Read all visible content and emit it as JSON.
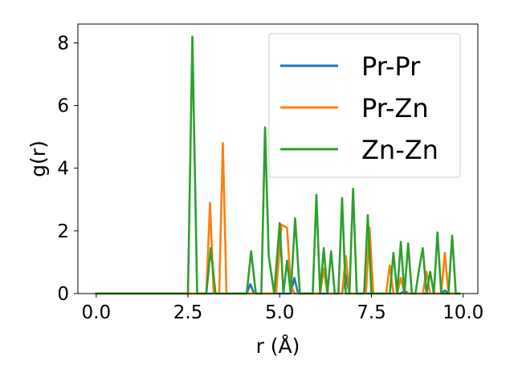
{
  "chart_data": {
    "type": "line",
    "xlabel": "r (Å)",
    "ylabel": "g(r)",
    "xlim": [
      -0.5,
      10.4
    ],
    "ylim": [
      0,
      8.6
    ],
    "xticks": [
      0.0,
      2.5,
      5.0,
      7.5,
      10.0
    ],
    "xtick_labels": [
      "0.0",
      "2.5",
      "5.0",
      "7.5",
      "10.0"
    ],
    "yticks": [
      0,
      2,
      4,
      6,
      8
    ],
    "ytick_labels": [
      "0",
      "2",
      "4",
      "6",
      "8"
    ],
    "grid": false,
    "legend_position": "top-right",
    "series": [
      {
        "name": "Pr-Pr",
        "color": "#1f77b4",
        "x": [
          0.0,
          4.1,
          4.2,
          4.3,
          5.3,
          5.4,
          5.5,
          6.7,
          6.8,
          6.9,
          8.3,
          8.4,
          8.5,
          9.4,
          9.5,
          9.6,
          9.9
        ],
        "y": [
          0,
          0,
          0.3,
          0,
          0,
          0.5,
          0,
          0,
          0.6,
          0,
          0,
          0.1,
          0,
          0,
          0.1,
          0,
          0
        ]
      },
      {
        "name": "Pr-Zn",
        "color": "#ff7f0e",
        "x": [
          0.0,
          3.0,
          3.1,
          3.2,
          3.35,
          3.45,
          3.55,
          4.9,
          5.05,
          5.2,
          5.3,
          5.4,
          6.1,
          6.2,
          6.3,
          6.7,
          6.8,
          6.9,
          7.35,
          7.45,
          7.55,
          7.9,
          8.0,
          8.1,
          8.2,
          8.3,
          8.4,
          8.9,
          9.0,
          9.1,
          9.4,
          9.5,
          9.6,
          9.9
        ],
        "y": [
          0,
          0,
          2.9,
          0,
          0,
          4.8,
          0,
          0,
          2.2,
          2.1,
          0.3,
          0,
          0,
          0.8,
          0,
          0,
          1.2,
          0,
          0,
          2.1,
          0,
          0,
          0.9,
          0,
          0,
          0.5,
          0,
          0,
          0.7,
          0,
          0,
          1.3,
          0,
          0
        ]
      },
      {
        "name": "Zn-Zn",
        "color": "#2ca02c",
        "x": [
          0.0,
          2.5,
          2.62,
          2.75,
          3.0,
          3.12,
          3.25,
          4.1,
          4.22,
          4.35,
          4.5,
          4.6,
          4.7,
          4.85,
          5.0,
          5.1,
          5.2,
          5.3,
          5.42,
          5.55,
          5.9,
          6.0,
          6.1,
          6.2,
          6.3,
          6.4,
          6.5,
          6.6,
          6.7,
          6.8,
          6.9,
          7.0,
          7.1,
          7.2,
          7.3,
          7.4,
          7.5,
          7.6,
          7.7,
          7.8,
          7.9,
          8.0,
          8.1,
          8.2,
          8.3,
          8.4,
          8.5,
          8.6,
          8.7,
          8.8,
          8.9,
          9.0,
          9.1,
          9.2,
          9.3,
          9.4,
          9.5,
          9.6,
          9.7,
          9.8,
          9.9
        ],
        "y": [
          0,
          0,
          8.2,
          0,
          0,
          1.45,
          0,
          0,
          1.35,
          0,
          0,
          5.3,
          1.2,
          0,
          2.25,
          0,
          1.05,
          0,
          2.4,
          0,
          0,
          3.15,
          0,
          1.45,
          0,
          1.35,
          0,
          0,
          3.05,
          0,
          0,
          3.35,
          0,
          0,
          0,
          2.5,
          0,
          0,
          0,
          0,
          0,
          0,
          1.3,
          0,
          1.65,
          0,
          1.6,
          0,
          0,
          0.8,
          1.45,
          0,
          0.7,
          0,
          1.95,
          0,
          0,
          0,
          1.85,
          0,
          0
        ]
      }
    ]
  }
}
